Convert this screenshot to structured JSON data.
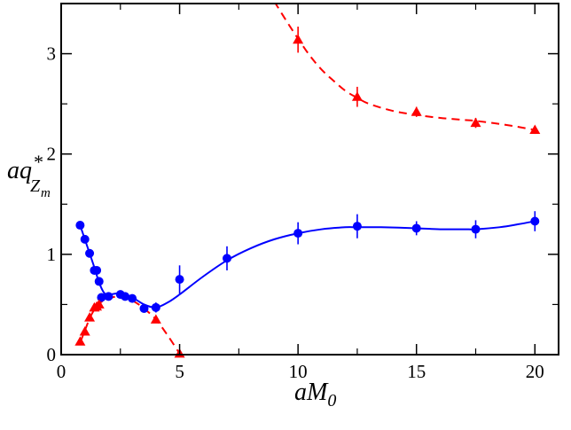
{
  "chart_data": {
    "type": "scatter",
    "title": "",
    "xlabel": {
      "main": "aM",
      "sub": "0"
    },
    "ylabel": {
      "main": "aq",
      "sub": "Z",
      "subsub": "m",
      "sup": "*"
    },
    "xlim": [
      0,
      21
    ],
    "ylim": [
      0,
      3.5
    ],
    "xticks": [
      0,
      5,
      10,
      15,
      20
    ],
    "yticks": [
      0,
      1,
      2,
      3
    ],
    "xtick_labels": [
      "0",
      "5",
      "10",
      "15",
      "20"
    ],
    "ytick_labels": [
      "0",
      "1",
      "2",
      "3"
    ],
    "grid": false,
    "series": [
      {
        "name": "blue-circles",
        "color": "#0000ff",
        "marker": "circle",
        "line_style": "solid",
        "points": [
          {
            "x": 0.8,
            "y": 1.29,
            "err": 0.02
          },
          {
            "x": 1.0,
            "y": 1.15,
            "err": 0.02
          },
          {
            "x": 1.2,
            "y": 1.01,
            "err": 0.02
          },
          {
            "x": 1.4,
            "y": 0.84,
            "err": 0.02
          },
          {
            "x": 1.5,
            "y": 0.84,
            "err": 0.02
          },
          {
            "x": 1.6,
            "y": 0.73,
            "err": 0.02
          },
          {
            "x": 1.7,
            "y": 0.57,
            "err": 0.04
          },
          {
            "x": 2.0,
            "y": 0.58,
            "err": 0.02
          },
          {
            "x": 2.5,
            "y": 0.6,
            "err": 0.02
          },
          {
            "x": 2.7,
            "y": 0.58,
            "err": 0.02
          },
          {
            "x": 3.0,
            "y": 0.56,
            "err": 0.02
          },
          {
            "x": 3.5,
            "y": 0.46,
            "err": 0.03
          },
          {
            "x": 4.0,
            "y": 0.47,
            "err": 0.05
          },
          {
            "x": 5.0,
            "y": 0.75,
            "err": 0.14
          },
          {
            "x": 7.0,
            "y": 0.96,
            "err": 0.12
          },
          {
            "x": 10.0,
            "y": 1.21,
            "err": 0.11
          },
          {
            "x": 12.5,
            "y": 1.28,
            "err": 0.12
          },
          {
            "x": 15.0,
            "y": 1.26,
            "err": 0.07
          },
          {
            "x": 17.5,
            "y": 1.25,
            "err": 0.09
          },
          {
            "x": 20.0,
            "y": 1.33,
            "err": 0.1
          }
        ],
        "fit": [
          [
            0.8,
            1.29
          ],
          [
            1.0,
            1.15
          ],
          [
            1.2,
            1.01
          ],
          [
            1.4,
            0.87
          ],
          [
            1.6,
            0.72
          ],
          [
            1.8,
            0.62
          ],
          [
            2.0,
            0.6
          ],
          [
            2.5,
            0.61
          ],
          [
            3.0,
            0.57
          ],
          [
            3.5,
            0.5
          ],
          [
            4.0,
            0.47
          ],
          [
            4.5,
            0.52
          ],
          [
            5.0,
            0.6
          ],
          [
            6.0,
            0.78
          ],
          [
            7.0,
            0.94
          ],
          [
            8.0,
            1.06
          ],
          [
            9.0,
            1.15
          ],
          [
            10.0,
            1.21
          ],
          [
            11.0,
            1.25
          ],
          [
            12.0,
            1.27
          ],
          [
            12.5,
            1.27
          ],
          [
            13.5,
            1.27
          ],
          [
            15.0,
            1.26
          ],
          [
            16.0,
            1.25
          ],
          [
            17.0,
            1.25
          ],
          [
            17.5,
            1.25
          ],
          [
            18.5,
            1.27
          ],
          [
            19.3,
            1.3
          ],
          [
            20.0,
            1.33
          ]
        ]
      },
      {
        "name": "red-triangles",
        "color": "#ff0000",
        "marker": "triangle",
        "line_style": "dashed",
        "points": [
          {
            "x": 0.8,
            "y": 0.13,
            "err": 0.01
          },
          {
            "x": 1.0,
            "y": 0.23,
            "err": 0.01
          },
          {
            "x": 1.2,
            "y": 0.37,
            "err": 0.01
          },
          {
            "x": 1.4,
            "y": 0.47,
            "err": 0.01
          },
          {
            "x": 1.5,
            "y": 0.48,
            "err": 0.01
          },
          {
            "x": 1.6,
            "y": 0.5,
            "err": 0.01
          },
          {
            "x": 4.0,
            "y": 0.35,
            "err": 0.03
          },
          {
            "x": 5.0,
            "y": 0.01,
            "err": 0.01
          },
          {
            "x": 10.0,
            "y": 3.14,
            "err": 0.13
          },
          {
            "x": 12.5,
            "y": 2.57,
            "err": 0.1
          },
          {
            "x": 15.0,
            "y": 2.42,
            "err": 0.05
          },
          {
            "x": 17.5,
            "y": 2.31,
            "err": 0.05
          },
          {
            "x": 20.0,
            "y": 2.24,
            "err": 0.04
          }
        ],
        "fit_segments": [
          [
            [
              0.8,
              0.12
            ],
            [
              1.0,
              0.24
            ],
            [
              1.2,
              0.36
            ],
            [
              1.4,
              0.45
            ],
            [
              1.6,
              0.51
            ],
            [
              2.0,
              0.56
            ],
            [
              2.5,
              0.58
            ],
            [
              3.0,
              0.54
            ],
            [
              3.5,
              0.46
            ],
            [
              4.0,
              0.35
            ],
            [
              4.5,
              0.19
            ],
            [
              5.0,
              0.01
            ]
          ],
          [
            [
              9.0,
              3.52
            ],
            [
              9.5,
              3.33
            ],
            [
              10.0,
              3.15
            ],
            [
              10.5,
              2.98
            ],
            [
              11.0,
              2.84
            ],
            [
              11.5,
              2.73
            ],
            [
              12.0,
              2.63
            ],
            [
              12.5,
              2.56
            ],
            [
              13.0,
              2.5
            ],
            [
              14.0,
              2.43
            ],
            [
              15.0,
              2.39
            ],
            [
              16.0,
              2.36
            ],
            [
              17.0,
              2.34
            ],
            [
              17.5,
              2.33
            ],
            [
              18.5,
              2.3
            ],
            [
              19.3,
              2.27
            ],
            [
              20.0,
              2.24
            ]
          ]
        ]
      }
    ]
  }
}
